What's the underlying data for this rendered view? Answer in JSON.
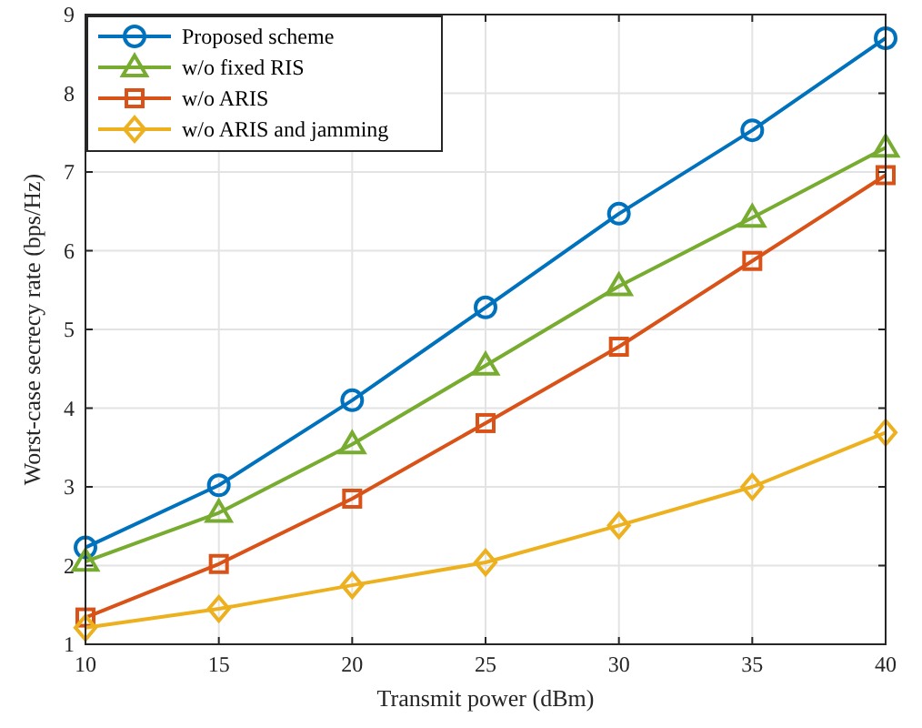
{
  "chart_data": {
    "type": "line",
    "xlabel": "Transmit power (dBm)",
    "ylabel": "Worst-case secrecy rate  (bps/Hz)",
    "x": [
      10,
      15,
      20,
      25,
      30,
      35,
      40
    ],
    "series": [
      {
        "name": "Proposed scheme",
        "color": "#0072bd",
        "marker": "circle",
        "values": [
          2.23,
          3.02,
          4.1,
          5.28,
          6.47,
          7.53,
          8.7
        ]
      },
      {
        "name": "w/o fixed RIS",
        "color": "#77ac30",
        "marker": "triangle",
        "values": [
          2.05,
          2.67,
          3.54,
          4.54,
          5.55,
          6.42,
          7.31
        ]
      },
      {
        "name": "w/o ARIS",
        "color": "#d95319",
        "marker": "square",
        "values": [
          1.34,
          2.02,
          2.85,
          3.81,
          4.78,
          5.87,
          6.96
        ]
      },
      {
        "name": "w/o ARIS and jamming",
        "color": "#edb120",
        "marker": "diamond",
        "values": [
          1.21,
          1.45,
          1.75,
          2.04,
          2.51,
          3.0,
          3.69
        ]
      }
    ],
    "xlim": [
      10,
      40
    ],
    "xticks": [
      10,
      15,
      20,
      25,
      30,
      35,
      40
    ],
    "ylim": [
      1,
      9
    ],
    "yticks": [
      1,
      2,
      3,
      4,
      5,
      6,
      7,
      8,
      9
    ],
    "grid": true,
    "legend": "top left",
    "line_style": "solid"
  }
}
